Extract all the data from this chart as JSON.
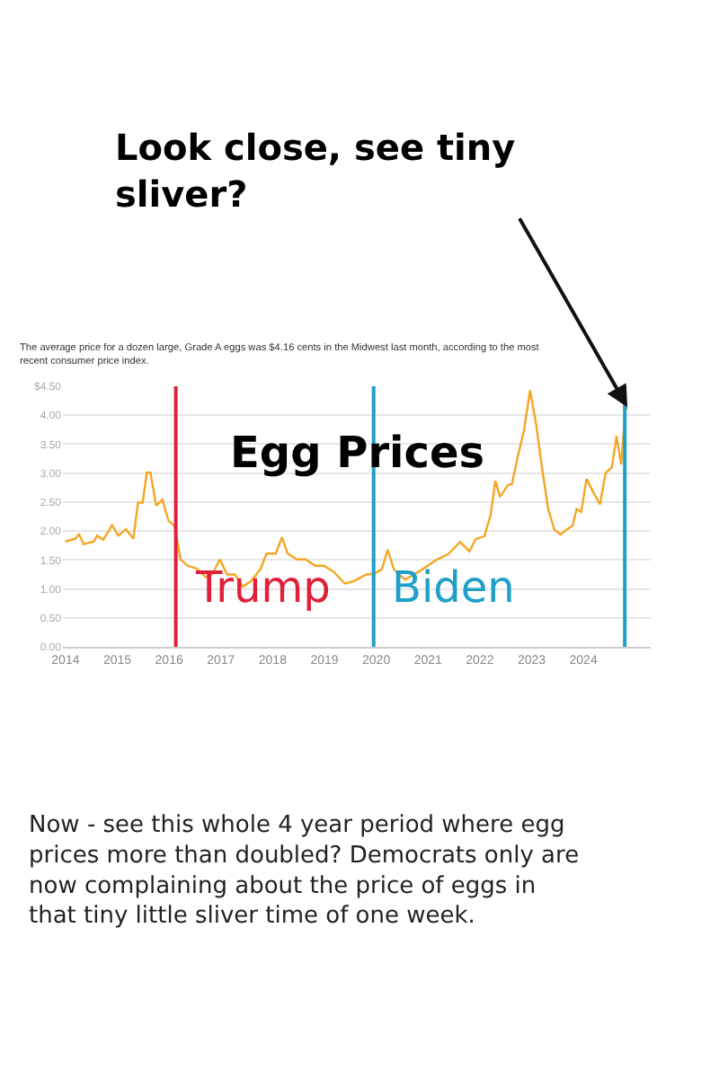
{
  "chart_data": {
    "type": "line",
    "title": "Egg Prices",
    "subtitle": "The average price for a dozen large, Grade A eggs was $4.16 cents in the Midwest last month, according to the most recent consumer price index.",
    "x": [
      2014.0,
      2014.2,
      2014.26,
      2014.35,
      2014.55,
      2014.61,
      2014.73,
      2014.9,
      2015.02,
      2015.17,
      2015.31,
      2015.4,
      2015.49,
      2015.57,
      2015.64,
      2015.75,
      2015.87,
      2015.99,
      2016.11,
      2016.22,
      2016.36,
      2016.54,
      2016.71,
      2016.83,
      2016.98,
      2017.12,
      2017.27,
      2017.42,
      2017.59,
      2017.77,
      2017.88,
      2018.06,
      2018.18,
      2018.29,
      2018.47,
      2018.64,
      2018.82,
      2018.99,
      2019.17,
      2019.4,
      2019.58,
      2019.81,
      2019.96,
      2020.11,
      2020.22,
      2020.34,
      2020.55,
      2020.81,
      2021.16,
      2021.39,
      2021.62,
      2021.8,
      2021.92,
      2022.09,
      2022.21,
      2022.3,
      2022.39,
      2022.54,
      2022.62,
      2022.74,
      2022.85,
      2022.97,
      2023.09,
      2023.2,
      2023.32,
      2023.44,
      2023.56,
      2023.67,
      2023.79,
      2023.87,
      2023.96,
      2024.06,
      2024.18,
      2024.32,
      2024.43,
      2024.55,
      2024.64,
      2024.73,
      2024.81,
      2024.85
    ],
    "series": [
      {
        "color": "#f5a623",
        "values": [
          1.82,
          1.87,
          1.95,
          1.77,
          1.82,
          1.92,
          1.85,
          2.1,
          1.92,
          2.03,
          1.87,
          2.49,
          2.49,
          3.01,
          3.01,
          2.44,
          2.54,
          2.18,
          2.08,
          1.51,
          1.4,
          1.35,
          1.2,
          1.25,
          1.51,
          1.25,
          1.25,
          1.04,
          1.14,
          1.35,
          1.61,
          1.61,
          1.89,
          1.61,
          1.51,
          1.51,
          1.4,
          1.4,
          1.3,
          1.09,
          1.14,
          1.25,
          1.26,
          1.34,
          1.68,
          1.34,
          1.16,
          1.29,
          1.5,
          1.6,
          1.81,
          1.65,
          1.86,
          1.91,
          2.28,
          2.87,
          2.59,
          2.79,
          2.81,
          3.31,
          3.72,
          4.43,
          3.83,
          3.1,
          2.38,
          2.02,
          1.94,
          2.02,
          2.09,
          2.38,
          2.33,
          2.9,
          2.69,
          2.46,
          3.0,
          3.1,
          3.64,
          3.15,
          4.08,
          4.14
        ]
      }
    ],
    "xlim": [
      2013.95,
      2025.3
    ],
    "xticks": [
      2014,
      2015,
      2016,
      2017,
      2018,
      2019,
      2020,
      2021,
      2022,
      2023,
      2024
    ],
    "ylim": [
      0,
      4.5
    ],
    "yticks": [
      {
        "value": 0,
        "label": "0.00"
      },
      {
        "value": 0.5,
        "label": "0.50"
      },
      {
        "value": 1,
        "label": "1.00"
      },
      {
        "value": 1.5,
        "label": "1.50"
      },
      {
        "value": 2,
        "label": "2.00"
      },
      {
        "value": 2.5,
        "label": "2.50"
      },
      {
        "value": 3,
        "label": "3.00"
      },
      {
        "value": 3.5,
        "label": "3.50"
      },
      {
        "value": 4,
        "label": "4.00"
      },
      {
        "value": 4.5,
        "label": "$4.50"
      }
    ],
    "grid": "y",
    "marker": "none",
    "line_style": "solid",
    "ref_lines": [
      {
        "axis": "x",
        "value": 2016.13,
        "label": "Trump",
        "color": "#e0203a"
      },
      {
        "axis": "x",
        "value": 2019.95,
        "label": "Biden",
        "color": "#1fa0c8"
      },
      {
        "axis": "x",
        "value": 2024.8,
        "color": "#1fa0c8"
      }
    ],
    "annotations": [
      {
        "text": "Look close, see tiny sliver?",
        "x": 2024.85,
        "y": 4.14
      },
      "Now - see this whole 4 year period where egg prices more than doubled? Democrats only are now complaining about the price of eggs in that tiny little sliver time of one week."
    ]
  }
}
